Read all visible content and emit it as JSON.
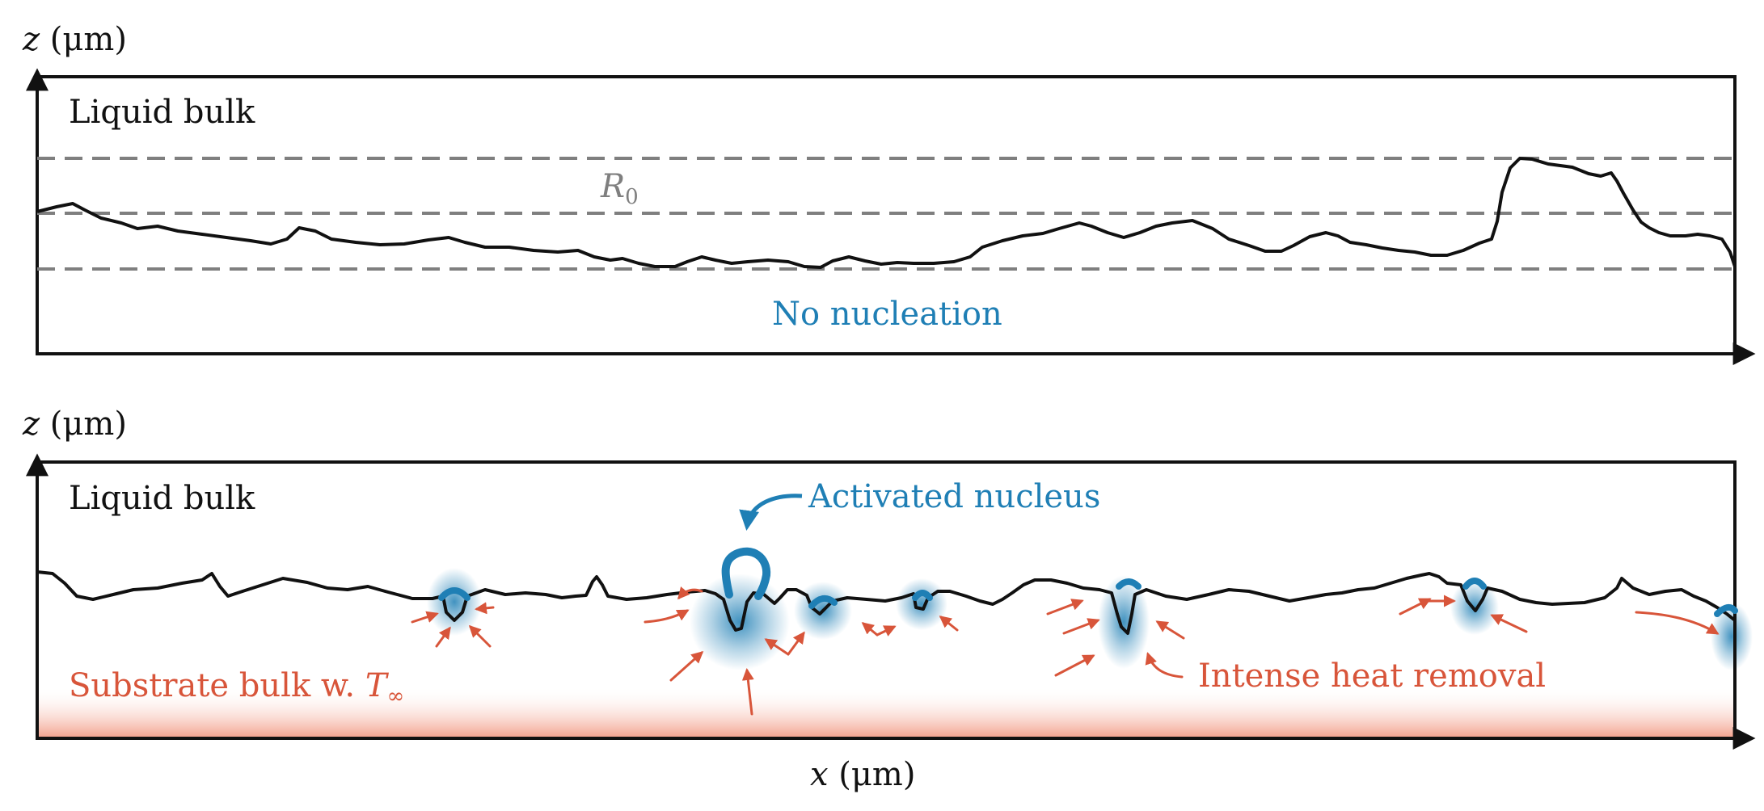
{
  "colors": {
    "axis": "#111111",
    "surface": "#111111",
    "reference_lines": "#7f7f7f",
    "nucleus": "#1f7fb5",
    "heat": "#d8553a",
    "substrate_gradient": "#f29a84"
  },
  "top_panel": {
    "z_axis_var": "z",
    "z_axis_unit": "(μm)",
    "liquid_label": "Liquid bulk",
    "reference_label": "R",
    "reference_subscript": "0",
    "status_label": "No nucleation"
  },
  "bottom_panel": {
    "z_axis_var": "z",
    "z_axis_unit": "(μm)",
    "liquid_label": "Liquid bulk",
    "nucleus_label": "Activated nucleus",
    "substrate_label": "Substrate bulk w. ",
    "substrate_temp_symbol": "T",
    "substrate_temp_subscript": "∞",
    "heat_label": "Intense heat removal",
    "x_axis_var": "x",
    "x_axis_unit": "(μm)"
  }
}
